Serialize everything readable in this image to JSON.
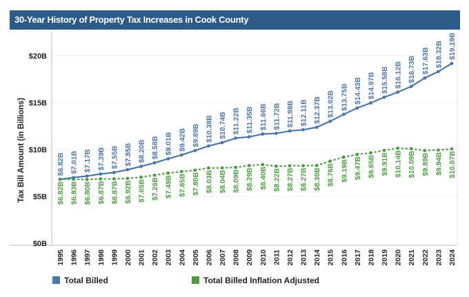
{
  "chart_data": {
    "type": "line",
    "title": "30-Year History of Property Tax Increases in Cook County",
    "xlabel": "",
    "ylabel": "Tax Bill Amount (in Billions)",
    "ylim": [
      0,
      22
    ],
    "yticks": [
      0,
      5,
      10,
      15,
      20
    ],
    "ytick_labels": [
      "$0B",
      "$5B",
      "$10B",
      "$15B",
      "$20B"
    ],
    "grid": true,
    "legend_position": "bottom-left",
    "categories": [
      "1995",
      "1996",
      "1997",
      "1998",
      "1999",
      "2000",
      "2001",
      "2002",
      "2003",
      "2004",
      "2005",
      "2006",
      "2007",
      "2008",
      "2009",
      "2010",
      "2011",
      "2012",
      "2013",
      "2014",
      "2015",
      "2016",
      "2017",
      "2018",
      "2019",
      "2020",
      "2021",
      "2022",
      "2023",
      "2024"
    ],
    "series": [
      {
        "name": "Total Billed",
        "color": "#4a76aa",
        "style": "solid",
        "values": [
          6.82,
          7.01,
          7.17,
          7.39,
          7.55,
          7.85,
          8.2,
          8.58,
          9.01,
          9.42,
          9.89,
          10.38,
          10.74,
          11.22,
          11.35,
          11.66,
          11.72,
          11.98,
          12.11,
          12.37,
          13.02,
          13.75,
          14.43,
          14.97,
          15.58,
          16.12,
          16.73,
          17.63,
          18.32,
          19.19
        ],
        "labels": [
          "$6.82B",
          "$7.01B",
          "$7.17B",
          "$7.39B",
          "$7.55B",
          "$7.85B",
          "$8.20B",
          "$8.58B",
          "$9.01B",
          "$9.42B",
          "$9.89B",
          "$10.38B",
          "$10.74B",
          "$11.22B",
          "$11.35B",
          "$11.66B",
          "$11.72B",
          "$11.98B",
          "$12.11B",
          "$12.37B",
          "$13.02B",
          "$13.75B",
          "$14.43B",
          "$14.97B",
          "$15.58B",
          "$16.12B",
          "$16.73B",
          "$17.63B",
          "$18.32B",
          "$19.19B"
        ]
      },
      {
        "name": "Total Billed Inflation Adjusted",
        "color": "#4a9e3f",
        "style": "dotted",
        "values": [
          6.82,
          6.83,
          6.8,
          6.87,
          6.87,
          6.92,
          7.05,
          7.26,
          7.49,
          7.65,
          7.8,
          8.03,
          8.04,
          8.09,
          8.29,
          8.4,
          8.22,
          8.27,
          8.27,
          8.3,
          8.76,
          9.19,
          9.47,
          9.65,
          9.91,
          10.14,
          10.09,
          9.89,
          9.94,
          10.07
        ],
        "labels": [
          "$6.82B",
          "$6.83B",
          "$6.80B",
          "$6.87B",
          "$6.87B",
          "$6.92B",
          "$7.05B",
          "$7.26B",
          "$7.49B",
          "$7.65B",
          "$7.80B",
          "$8.03B",
          "$8.04B",
          "$8.09B",
          "$8.29B",
          "$8.40B",
          "$8.22B",
          "$8.27B",
          "$8.27B",
          "$8.30B",
          "$8.76B",
          "$9.19B",
          "$9.47B",
          "$9.65B",
          "$9.91B",
          "$10.14B",
          "$10.09B",
          "$9.89B",
          "$9.94B",
          "$10.07B"
        ]
      }
    ]
  }
}
